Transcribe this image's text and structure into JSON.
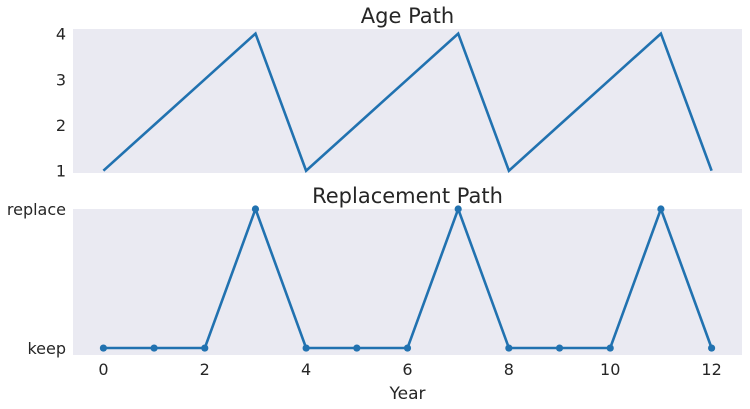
{
  "chart_data": [
    {
      "type": "line",
      "title": "Age Path",
      "xlabel": "",
      "ylabel": "",
      "x": [
        0,
        1,
        2,
        3,
        4,
        5,
        6,
        7,
        8,
        9,
        10,
        11,
        12
      ],
      "series": [
        {
          "values": [
            1,
            2,
            3,
            4,
            1,
            2,
            3,
            4,
            1,
            2,
            3,
            4,
            1
          ],
          "markers": false
        }
      ],
      "xlim": [
        -0.6,
        12.6
      ],
      "ylim": [
        0.95,
        4.1
      ],
      "yticks": [
        1,
        2,
        3,
        4
      ],
      "ytick_labels": [
        "1",
        "2",
        "3",
        "4"
      ],
      "xticks_visible": false,
      "grid": false,
      "background": "#eaeaf2",
      "line_color": "#2172b0"
    },
    {
      "type": "line",
      "title": "Replacement Path",
      "xlabel": "Year",
      "ylabel": "",
      "x": [
        0,
        1,
        2,
        3,
        4,
        5,
        6,
        7,
        8,
        9,
        10,
        11,
        12
      ],
      "series": [
        {
          "values": [
            0,
            0,
            0,
            1,
            0,
            0,
            0,
            1,
            0,
            0,
            0,
            1,
            0
          ],
          "markers": true
        }
      ],
      "xlim": [
        -0.6,
        12.6
      ],
      "ylim": [
        -0.05,
        1.0
      ],
      "yticks": [
        0,
        1
      ],
      "ytick_labels": [
        "keep",
        "replace"
      ],
      "xticks": [
        0,
        2,
        4,
        6,
        8,
        10,
        12
      ],
      "xtick_labels": [
        "0",
        "2",
        "4",
        "6",
        "8",
        "10",
        "12"
      ],
      "grid": false,
      "background": "#eaeaf2",
      "line_color": "#2172b0"
    }
  ]
}
